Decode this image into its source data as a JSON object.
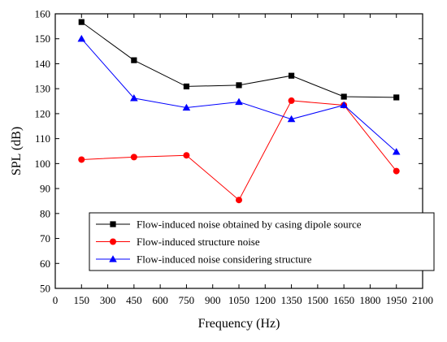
{
  "chart_data": {
    "type": "line",
    "xlabel": "Frequency (Hz)",
    "ylabel": "SPL (dB)",
    "xlim": [
      0,
      2100
    ],
    "ylim": [
      50,
      160
    ],
    "xticks": [
      0,
      150,
      300,
      450,
      600,
      750,
      900,
      1050,
      1200,
      1350,
      1500,
      1650,
      1800,
      1950,
      2100
    ],
    "yticks": [
      50,
      60,
      70,
      80,
      90,
      100,
      110,
      120,
      130,
      140,
      150,
      160
    ],
    "grid": false,
    "legend_position": "bottom-right",
    "series": [
      {
        "name": "Flow-induced noise obtained by casing dipole source",
        "color": "#000000",
        "marker": "square",
        "x": [
          150,
          450,
          750,
          1050,
          1350,
          1650,
          1950
        ],
        "y": [
          156.7,
          141.4,
          130.9,
          131.4,
          135.2,
          126.8,
          126.5
        ]
      },
      {
        "name": "Flow-induced structure noise",
        "color": "#ff0000",
        "marker": "circle",
        "x": [
          150,
          450,
          750,
          1050,
          1350,
          1650,
          1950
        ],
        "y": [
          101.6,
          102.6,
          103.3,
          85.4,
          125.2,
          123.4,
          97.0
        ]
      },
      {
        "name": "Flow-induced noise considering structure",
        "color": "#0000ff",
        "marker": "triangle",
        "x": [
          150,
          450,
          750,
          1050,
          1350,
          1650,
          1950
        ],
        "y": [
          150.0,
          126.2,
          122.4,
          124.7,
          117.8,
          123.4,
          104.7
        ]
      }
    ]
  }
}
